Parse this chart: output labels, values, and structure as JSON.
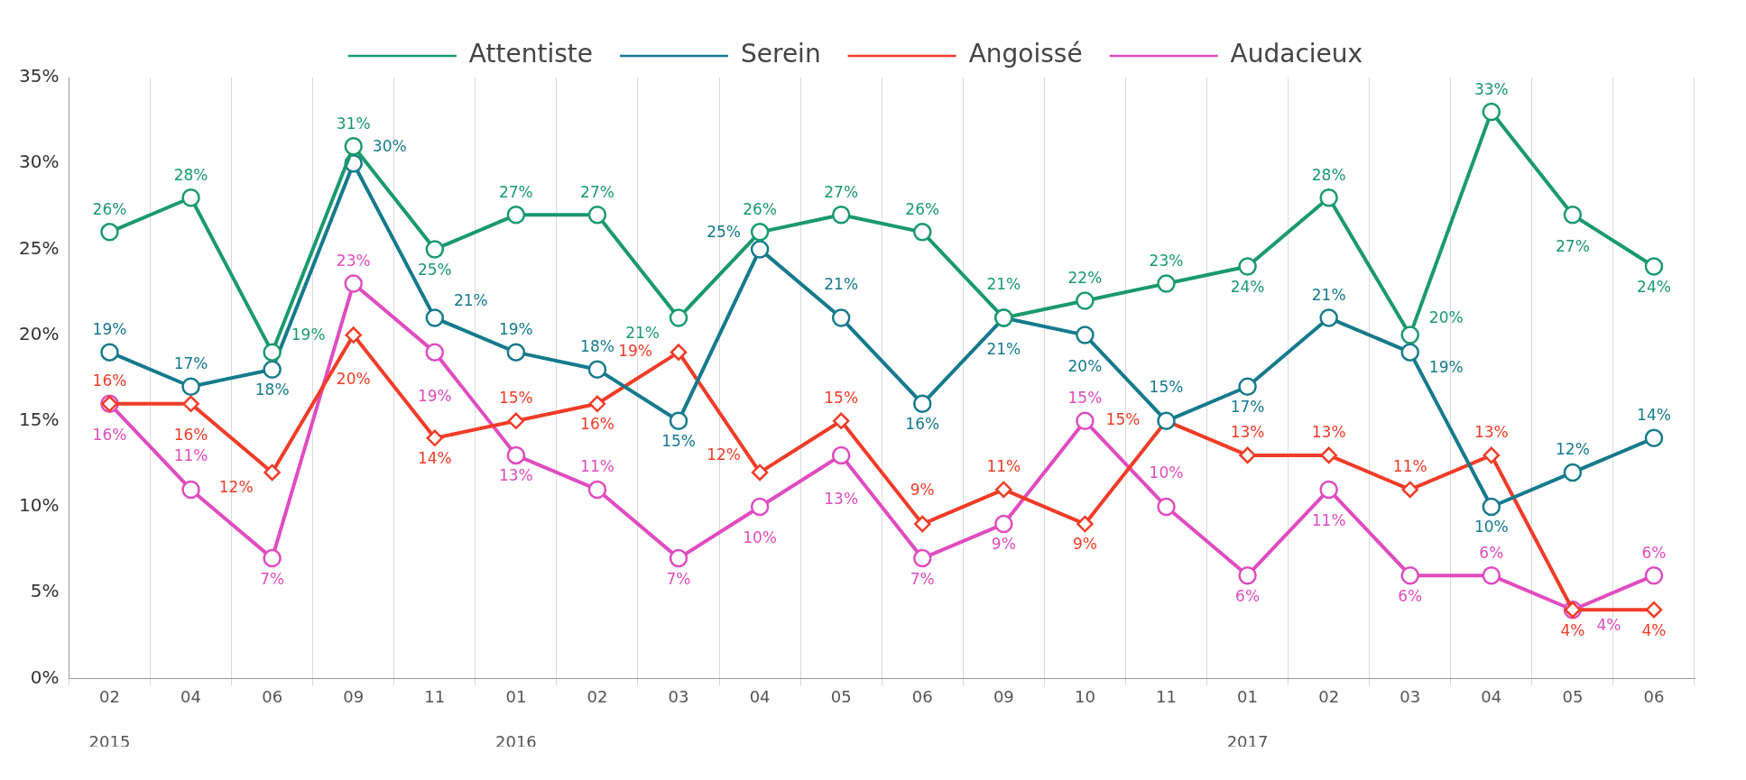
{
  "chart_data": {
    "type": "line",
    "categories": [
      "02",
      "04",
      "06",
      "09",
      "11",
      "01",
      "02",
      "03",
      "04",
      "05",
      "06",
      "09",
      "10",
      "11",
      "01",
      "02",
      "03",
      "04",
      "05",
      "06"
    ],
    "series": [
      {
        "name": "Attentiste",
        "color": "#1a9a6c",
        "marker": "circle",
        "values": [
          26,
          28,
          19,
          31,
          25,
          27,
          27,
          21,
          26,
          27,
          26,
          21,
          22,
          23,
          24,
          28,
          20,
          33,
          27,
          24
        ],
        "value_labels": [
          "26%",
          "28%",
          "19%",
          "31%",
          "25%",
          "27%",
          "27%",
          "21%",
          "26%",
          "27%",
          "26%",
          "21%",
          "22%",
          "23%",
          "24%",
          "28%",
          "20%",
          "33%",
          "27%",
          "24%"
        ]
      },
      {
        "name": "Serein",
        "color": "#157a8c",
        "marker": "circle",
        "values": [
          19,
          17,
          18,
          30,
          21,
          19,
          18,
          15,
          25,
          21,
          16,
          21,
          20,
          15,
          17,
          21,
          19,
          10,
          12,
          14
        ],
        "value_labels": [
          "19%",
          "17%",
          "18%",
          "30%",
          "21%",
          "19%",
          "18%",
          "15%",
          "25%",
          "21%",
          "16%",
          "21%",
          "20%",
          "15%",
          "17%",
          "21%",
          "19%",
          "10%",
          "12%",
          "14%"
        ]
      },
      {
        "name": "Angoissé",
        "color": "#f03c28",
        "marker": "diamond",
        "values": [
          16,
          16,
          12,
          20,
          14,
          15,
          16,
          19,
          12,
          15,
          9,
          11,
          9,
          15,
          13,
          13,
          11,
          13,
          4,
          4
        ],
        "value_labels": [
          "16%",
          "16%",
          "12%",
          "20%",
          "14%",
          "15%",
          "16%",
          "19%",
          "12%",
          "15%",
          "9%",
          "11%",
          "9%",
          "15%",
          "13%",
          "13%",
          "11%",
          "13%",
          "4%",
          "4%"
        ]
      },
      {
        "name": "Audacieux",
        "color": "#e04cbf",
        "marker": "circle",
        "values": [
          16,
          11,
          7,
          23,
          19,
          13,
          11,
          7,
          10,
          13,
          7,
          9,
          15,
          10,
          6,
          11,
          6,
          6,
          4,
          6
        ],
        "value_labels": [
          "16%",
          "11%",
          "7%",
          "23%",
          "19%",
          "13%",
          "11%",
          "7%",
          "10%",
          "13%",
          "7%",
          "9%",
          "15%",
          "10%",
          "6%",
          "11%",
          "6%",
          "6%",
          "4%",
          "6%"
        ]
      }
    ],
    "ylim": [
      0,
      35
    ],
    "yticks": [
      {
        "value": 0,
        "label": "0%"
      },
      {
        "value": 5,
        "label": "5%"
      },
      {
        "value": 10,
        "label": "10%"
      },
      {
        "value": 15,
        "label": "15%"
      },
      {
        "value": 20,
        "label": "20%"
      },
      {
        "value": 25,
        "label": "25%"
      },
      {
        "value": 30,
        "label": "30%"
      },
      {
        "value": 35,
        "label": "35%"
      }
    ],
    "grid": "x",
    "legend": "top",
    "annotations": [
      "2015",
      "2016",
      "2017"
    ]
  }
}
